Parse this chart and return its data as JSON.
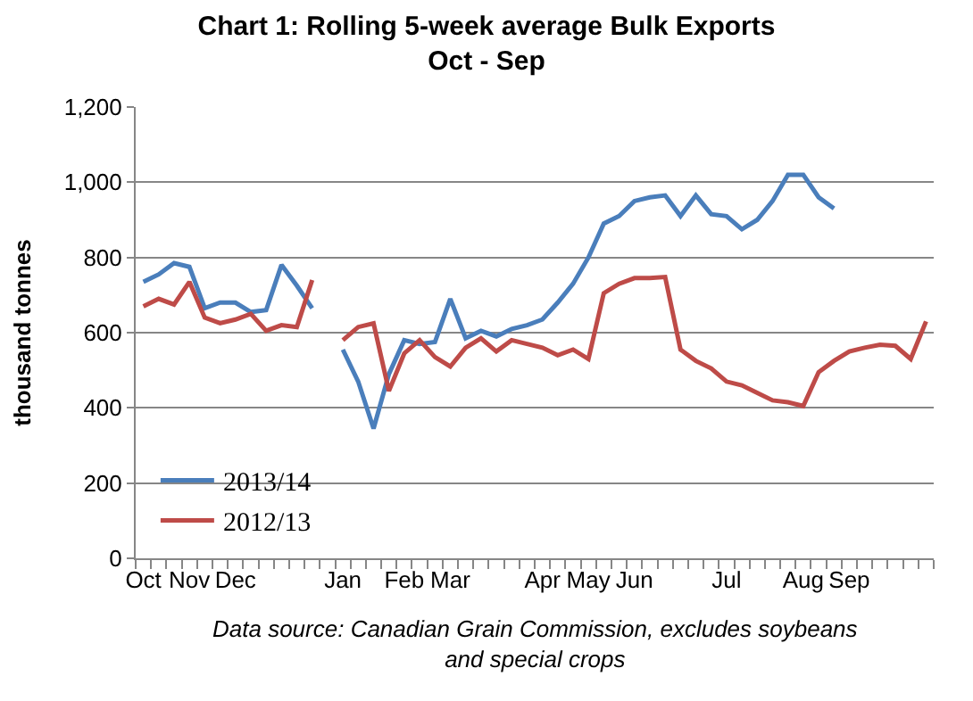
{
  "chart_data": {
    "type": "line",
    "title": "Chart 1: Rolling 5-week average Bulk Exports",
    "subtitle": "Oct - Sep",
    "ylabel": "thousand tonnes",
    "categories": [
      "Oct",
      null,
      null,
      "Nov",
      null,
      null,
      "Dec",
      null,
      null,
      null,
      null,
      null,
      null,
      "Jan",
      null,
      null,
      null,
      "Feb",
      null,
      null,
      "Mar",
      null,
      null,
      null,
      null,
      null,
      "Apr",
      null,
      null,
      "May",
      null,
      null,
      "Jun",
      null,
      null,
      null,
      null,
      null,
      "Jul",
      null,
      null,
      null,
      null,
      "Aug",
      null,
      null,
      "Sep",
      null,
      null,
      null,
      null,
      null
    ],
    "series": [
      {
        "name": "2013/14",
        "color": "#4a7ebb",
        "values": [
          735,
          755,
          785,
          775,
          665,
          680,
          680,
          655,
          660,
          780,
          725,
          665,
          null,
          555,
          470,
          345,
          490,
          580,
          570,
          575,
          690,
          585,
          605,
          590,
          610,
          620,
          635,
          680,
          730,
          800,
          890,
          910,
          950,
          960,
          965,
          910,
          965,
          915,
          910,
          875,
          900,
          950,
          1020,
          1020,
          960,
          930,
          null,
          null,
          null,
          null,
          null,
          null
        ]
      },
      {
        "name": "2012/13",
        "color": "#be4b48",
        "values": [
          670,
          690,
          675,
          735,
          640,
          625,
          635,
          650,
          605,
          620,
          615,
          740,
          null,
          580,
          615,
          625,
          445,
          545,
          580,
          535,
          510,
          560,
          585,
          550,
          580,
          570,
          560,
          540,
          555,
          530,
          705,
          730,
          745,
          745,
          748,
          555,
          525,
          505,
          470,
          460,
          440,
          420,
          415,
          405,
          495,
          525,
          550,
          560,
          568,
          565,
          530,
          630
        ]
      }
    ],
    "ylim": [
      0,
      1200
    ],
    "yticks": [
      0,
      {
        "value": 200,
        "label": "200"
      },
      {
        "value": 400,
        "label": "400"
      },
      {
        "value": 600,
        "label": "600"
      },
      {
        "value": 800,
        "label": "800"
      },
      {
        "value": 1000,
        "label": "1,000"
      },
      {
        "value": 1200,
        "label": "1,200"
      }
    ],
    "grid": "y",
    "legend": "bottom left",
    "marker": "none",
    "line_style": "solid",
    "annotations": [
      "Data source: Canadian Grain Commission, excludes soybeans and special crops"
    ]
  }
}
